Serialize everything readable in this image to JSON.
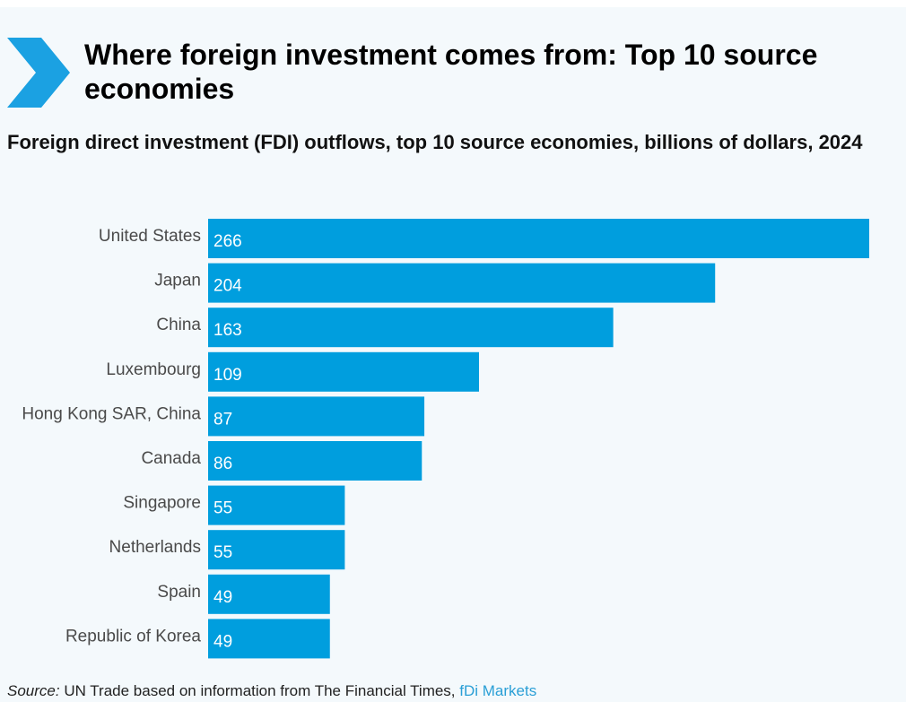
{
  "header": {
    "title": "Where foreign investment comes from: Top 10 source economies",
    "subtitle": "Foreign direct investment (FDI) outflows, top 10 source economies, billions of dollars, 2024",
    "icon": "chevron-right-icon"
  },
  "footer": {
    "source_label": "Source:",
    "source_text": " UN Trade based on information from The Financial Times, ",
    "source_link": "fDi Markets"
  },
  "colors": {
    "bar": "#009ede",
    "chevron": "#1ba1e2",
    "background": "#f4f9fc"
  },
  "chart_data": {
    "type": "bar",
    "orientation": "horizontal",
    "title": "Where foreign investment comes from: Top 10 source economies",
    "subtitle": "Foreign direct investment (FDI) outflows, top 10 source economies, billions of dollars, 2024",
    "categories": [
      "United States",
      "Japan",
      "China",
      "Luxembourg",
      "Hong Kong SAR, China",
      "Canada",
      "Singapore",
      "Netherlands",
      "Spain",
      "Republic of Korea"
    ],
    "values": [
      266,
      204,
      163,
      109,
      87,
      86,
      55,
      55,
      49,
      49
    ],
    "data_labels": [
      "266",
      "204",
      "163",
      "109",
      "87",
      "86",
      "55",
      "55",
      "49",
      "49"
    ],
    "xlabel": "",
    "ylabel": "",
    "xlim": [
      0,
      266
    ],
    "grid": false,
    "legend": "none"
  }
}
